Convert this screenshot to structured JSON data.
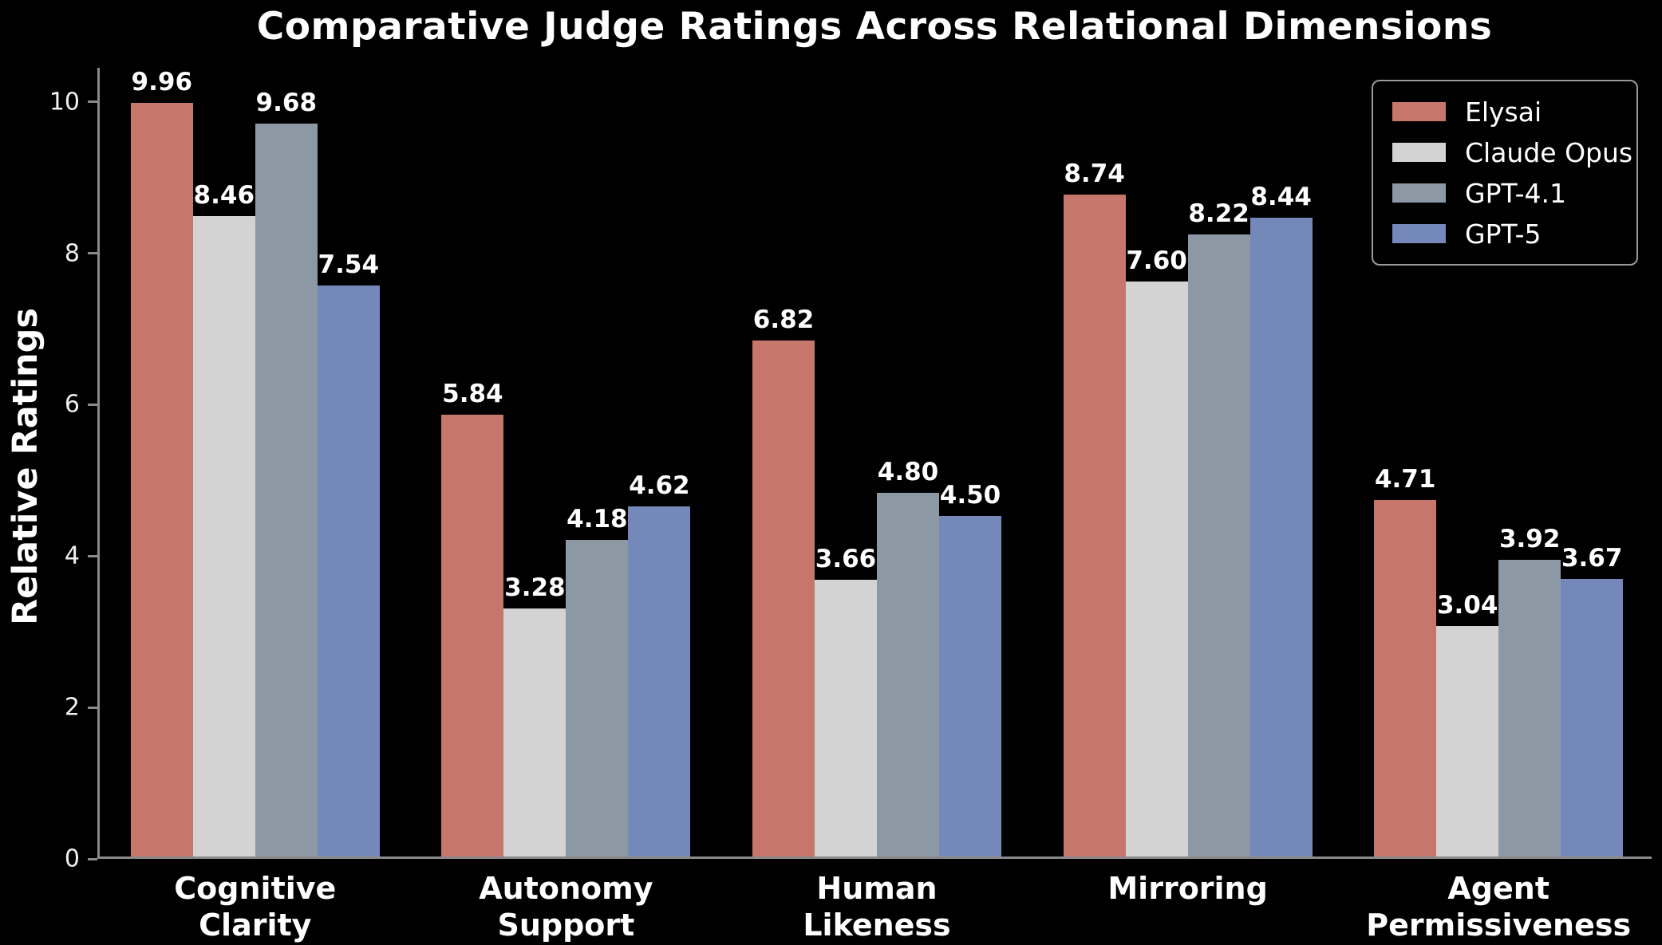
{
  "title": "Comparative Judge Ratings Across Relational Dimensions",
  "chart_data": {
    "type": "bar",
    "title": "Comparative Judge Ratings Across Relational Dimensions",
    "xlabel": "",
    "ylabel": "Relative Ratings",
    "ylim": [
      0,
      10.45
    ],
    "yticks": [
      0,
      2,
      4,
      6,
      8,
      10
    ],
    "grid": false,
    "background": "#000000",
    "axis_color": "#8a8a8a",
    "text_color": "#ffffff",
    "legend_position": "upper right",
    "value_labels": true,
    "value_decimals": 2,
    "categories": [
      "Cognitive\nClarity",
      "Autonomy\nSupport",
      "Human\nLikeness",
      "Mirroring",
      "Agent\nPermissiveness"
    ],
    "series": [
      {
        "name": "Elysai",
        "color": "#c7766b",
        "values": [
          9.96,
          5.84,
          6.82,
          8.74,
          4.71
        ]
      },
      {
        "name": "Claude Opus",
        "color": "#d3d3d3",
        "values": [
          8.46,
          3.28,
          3.66,
          7.6,
          3.04
        ]
      },
      {
        "name": "GPT-4.1",
        "color": "#8c99a4",
        "values": [
          9.68,
          4.18,
          4.8,
          8.22,
          3.92
        ]
      },
      {
        "name": "GPT-5",
        "color": "#7489b9",
        "values": [
          7.54,
          4.62,
          4.5,
          8.44,
          3.67
        ]
      }
    ]
  }
}
